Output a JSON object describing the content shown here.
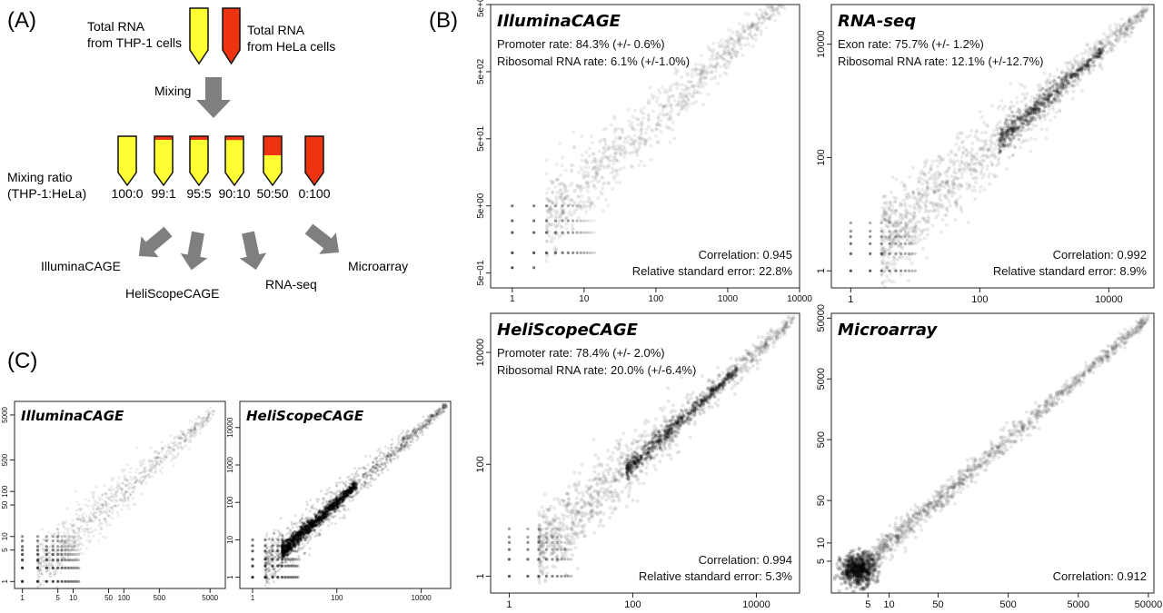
{
  "panel_labels": {
    "a": "(A)",
    "b": "(B)",
    "c": "(C)"
  },
  "workflow": {
    "thp1_label_line1": "Total RNA",
    "thp1_label_line2": "from THP-1 cells",
    "hela_label_line1": "Total RNA",
    "hela_label_line2": "from HeLa cells",
    "mixing_label": "Mixing",
    "ratio_label_line1": "Mixing ratio",
    "ratio_label_line2": "(THP-1:HeLa)",
    "ratios": [
      {
        "label": "100:0",
        "hela_fraction": 0
      },
      {
        "label": "99:1",
        "hela_fraction": 0.01
      },
      {
        "label": "95:5",
        "hela_fraction": 0.05
      },
      {
        "label": "90:10",
        "hela_fraction": 0.1
      },
      {
        "label": "50:50",
        "hela_fraction": 0.5
      },
      {
        "label": "0:100",
        "hela_fraction": 1.0
      }
    ],
    "methods": [
      "IlluminaCAGE",
      "HeliScopeCAGE",
      "RNA-seq",
      "Microarray"
    ],
    "colors": {
      "thp1": "#ffff33",
      "hela": "#ee3311",
      "arrow": "#7f7f7f"
    }
  },
  "chart_data": [
    {
      "id": "b-illumina",
      "type": "scatter",
      "title": "IlluminaCAGE",
      "x_scale": "log",
      "y_scale": "log",
      "xlim": [
        0.5,
        10000
      ],
      "ylim": [
        0.3,
        5000
      ],
      "x_ticks": [
        "1",
        "10",
        "100",
        "1000",
        "10000"
      ],
      "y_ticks": [
        "5e−01",
        "5e+00",
        "5e+01",
        "5e+02",
        "5e+03"
      ],
      "stats": [
        "Promoter rate: 84.3% (+/- 0.6%)",
        "Ribosomal RNA rate: 6.1% (+/-1.0%)"
      ],
      "bottom_stats": [
        "Correlation:  0.945",
        "Relative standard error: 22.8%"
      ],
      "correlation": 0.945,
      "relative_standard_error_pct": 22.8
    },
    {
      "id": "b-rnaseq",
      "type": "scatter",
      "title": "RNA-seq",
      "x_scale": "log",
      "y_scale": "log",
      "xlim": [
        0.5,
        50000
      ],
      "ylim": [
        0.5,
        50000
      ],
      "x_ticks": [
        "1",
        "100",
        "10000"
      ],
      "y_ticks": [
        "1",
        "100",
        "10000"
      ],
      "stats": [
        "Exon rate: 75.7% (+/- 1.2%)",
        "Ribosomal RNA rate: 12.1% (+/-12.7%)"
      ],
      "bottom_stats": [
        "Correlation: 0.992",
        "Relative standard error:  8.9%"
      ],
      "correlation": 0.992,
      "relative_standard_error_pct": 8.9
    },
    {
      "id": "b-heliscope",
      "type": "scatter",
      "title": "HeliScopeCAGE",
      "x_scale": "log",
      "y_scale": "log",
      "xlim": [
        0.5,
        50000
      ],
      "ylim": [
        0.5,
        50000
      ],
      "x_ticks": [
        "1",
        "100",
        "10000"
      ],
      "y_ticks": [
        "1",
        "100",
        "10000"
      ],
      "stats": [
        "Promoter rate: 78.4% (+/- 2.0%)",
        "Ribosomal RNA rate: 20.0% (+/-6.4%)"
      ],
      "bottom_stats": [
        "Correlation: 0.994",
        "Relative standard error:  5.3%"
      ],
      "correlation": 0.994,
      "relative_standard_error_pct": 5.3
    },
    {
      "id": "b-microarray",
      "type": "scatter",
      "title": "Microarray",
      "x_scale": "log",
      "y_scale": "log",
      "xlim": [
        1.5,
        60000
      ],
      "ylim": [
        1.5,
        60000
      ],
      "x_ticks": [
        "5",
        "10",
        "50",
        "500",
        "5000",
        "50000"
      ],
      "y_ticks": [
        "5",
        "10",
        "50",
        "500",
        "5000",
        "50000"
      ],
      "stats": [],
      "bottom_stats": [
        "Correlation: 0.912"
      ],
      "correlation": 0.912
    },
    {
      "id": "c-illumina",
      "type": "scatter",
      "title": "IlluminaCAGE",
      "x_scale": "log",
      "y_scale": "log",
      "xlim": [
        0.7,
        10000
      ],
      "ylim": [
        0.7,
        10000
      ],
      "x_ticks": [
        "1",
        "5",
        "10",
        "50",
        "100",
        "500",
        "5000"
      ],
      "y_ticks": [
        "1",
        "5",
        "10",
        "50",
        "100",
        "500",
        "5000"
      ],
      "stats": [],
      "bottom_stats": []
    },
    {
      "id": "c-heliscope",
      "type": "scatter",
      "title": "HeliScopeCAGE",
      "x_scale": "log",
      "y_scale": "log",
      "xlim": [
        0.5,
        50000
      ],
      "ylim": [
        0.5,
        50000
      ],
      "x_ticks": [
        "1",
        "100",
        "10000"
      ],
      "y_ticks": [
        "1",
        "10",
        "100",
        "1000",
        "10000"
      ],
      "stats": [],
      "bottom_stats": []
    }
  ]
}
